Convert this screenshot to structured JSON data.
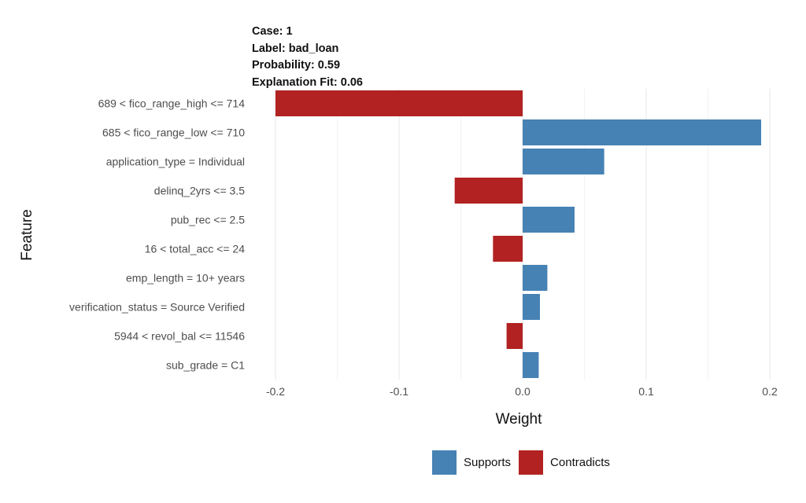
{
  "header": {
    "case": "Case: 1",
    "label": "Label: bad_loan",
    "probability": "Probability: 0.59",
    "fit": "Explanation Fit: 0.06"
  },
  "chart_data": {
    "type": "bar",
    "orientation": "horizontal",
    "xlabel": "Weight",
    "ylabel": "Feature",
    "xlim": [
      -0.2,
      0.2
    ],
    "x_ticks": [
      -0.2,
      -0.1,
      0.0,
      0.1,
      0.2
    ],
    "x_tick_labels": [
      "-0.2",
      "-0.1",
      "0.0",
      "0.1",
      "0.2"
    ],
    "grid": true,
    "categories": [
      "689 < fico_range_high <= 714",
      "685 < fico_range_low <= 710",
      "application_type = Individual",
      "delinq_2yrs <= 3.5",
      "pub_rec <= 2.5",
      "16 < total_acc <= 24",
      "emp_length = 10+ years",
      "verification_status = Source Verified",
      "5944 < revol_bal <= 11546",
      "sub_grade = C1"
    ],
    "values": [
      -0.2,
      0.193,
      0.066,
      -0.055,
      0.042,
      -0.024,
      0.02,
      0.014,
      -0.013,
      0.013
    ],
    "legend": {
      "position": "bottom",
      "entries": [
        {
          "name": "Supports",
          "color": "#4682b4"
        },
        {
          "name": "Contradicts",
          "color": "#b22222"
        }
      ]
    }
  },
  "colors": {
    "supports": "#4682b4",
    "contradicts": "#b22222",
    "grid": "#ebebeb"
  }
}
